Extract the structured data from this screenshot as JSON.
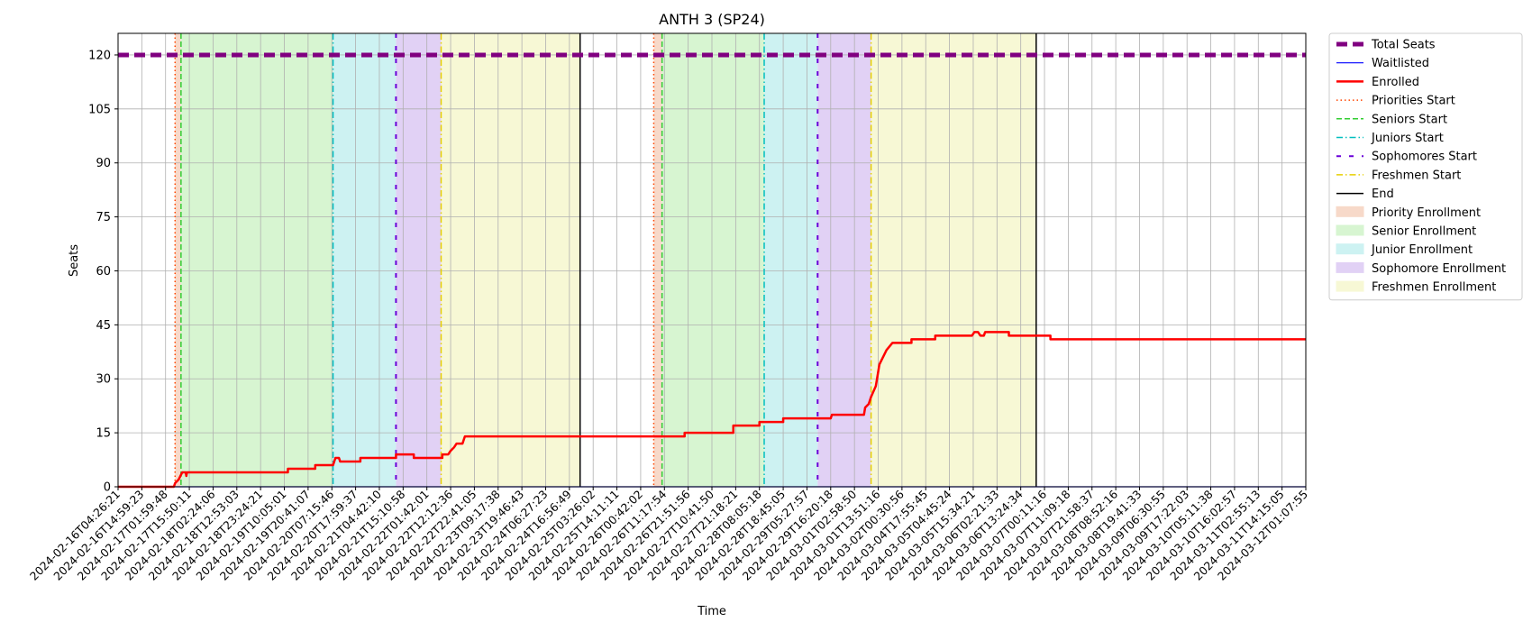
{
  "chart_data": {
    "type": "line",
    "title": "ANTH 3 (SP24)",
    "xlabel": "Time",
    "ylabel": "Seats",
    "ylim": [
      0,
      126
    ],
    "yticks": [
      0,
      15,
      30,
      45,
      60,
      75,
      90,
      105,
      120
    ],
    "xlim": [
      0,
      100
    ],
    "grid": true,
    "legend_position": "outside-right",
    "xtick_labels": [
      "2024-02-16T04:26:21",
      "2024-02-16T14:59:23",
      "2024-02-17T01:59:48",
      "2024-02-17T15:50:11",
      "2024-02-18T02:24:06",
      "2024-02-18T12:53:03",
      "2024-02-18T23:24:21",
      "2024-02-19T10:05:01",
      "2024-02-19T20:41:07",
      "2024-02-20T07:15:46",
      "2024-02-20T17:59:37",
      "2024-02-21T04:42:10",
      "2024-02-21T15:10:58",
      "2024-02-22T01:42:01",
      "2024-02-22T12:12:36",
      "2024-02-22T22:41:05",
      "2024-02-23T09:17:38",
      "2024-02-23T19:46:43",
      "2024-02-24T06:27:23",
      "2024-02-24T16:56:49",
      "2024-02-25T03:26:02",
      "2024-02-25T14:11:11",
      "2024-02-26T00:42:02",
      "2024-02-26T11:17:54",
      "2024-02-26T21:51:56",
      "2024-02-27T10:41:50",
      "2024-02-27T21:18:21",
      "2024-02-28T08:05:18",
      "2024-02-28T18:45:05",
      "2024-02-29T05:27:57",
      "2024-02-29T16:20:18",
      "2024-03-01T02:58:50",
      "2024-03-01T13:51:16",
      "2024-03-02T00:30:56",
      "2024-03-04T17:55:45",
      "2024-03-05T04:45:24",
      "2024-03-05T15:34:21",
      "2024-03-06T02:21:33",
      "2024-03-06T13:24:34",
      "2024-03-07T00:11:16",
      "2024-03-07T11:09:18",
      "2024-03-07T21:58:37",
      "2024-03-08T08:52:16",
      "2024-03-08T19:41:33",
      "2024-03-09T06:30:55",
      "2024-03-09T17:22:03",
      "2024-03-10T05:11:38",
      "2024-03-10T16:02:57",
      "2024-03-11T02:55:13",
      "2024-03-11T14:15:05",
      "2024-03-12T01:07:55"
    ],
    "legend": [
      {
        "label": "Total Seats",
        "kind": "line",
        "color": "#800080",
        "dash": "12,6",
        "width": 5
      },
      {
        "label": "Waitlisted",
        "kind": "line",
        "color": "#0000ff",
        "dash": "",
        "width": 1.2
      },
      {
        "label": "Enrolled",
        "kind": "line",
        "color": "#ff0000",
        "dash": "",
        "width": 2.5
      },
      {
        "label": "Priorities Start",
        "kind": "line",
        "color": "#ff4500",
        "dash": "1.5,3",
        "width": 1.5
      },
      {
        "label": "Seniors Start",
        "kind": "line",
        "color": "#32cd32",
        "dash": "6,3",
        "width": 1.5
      },
      {
        "label": "Juniors Start",
        "kind": "line",
        "color": "#00bfbf",
        "dash": "7,3,1.5,3",
        "width": 1.5
      },
      {
        "label": "Sophomores Start",
        "kind": "line",
        "color": "#6a00d8",
        "dash": "5,9",
        "width": 2
      },
      {
        "label": "Freshmen Start",
        "kind": "line",
        "color": "#e6cf00",
        "dash": "7,3,1.5,3",
        "width": 1.5
      },
      {
        "label": "End",
        "kind": "line",
        "color": "#000000",
        "dash": "",
        "width": 1.5
      },
      {
        "label": "Priority Enrollment",
        "kind": "patch",
        "color": "#f7d9c9",
        "dash": "",
        "width": 1
      },
      {
        "label": "Senior Enrollment",
        "kind": "patch",
        "color": "#d7f5d1",
        "dash": "",
        "width": 1
      },
      {
        "label": "Junior Enrollment",
        "kind": "patch",
        "color": "#cdf2f2",
        "dash": "",
        "width": 1
      },
      {
        "label": "Sophomore Enrollment",
        "kind": "patch",
        "color": "#e1d1f5",
        "dash": "",
        "width": 1
      },
      {
        "label": "Freshmen Enrollment",
        "kind": "patch",
        "color": "#f7f8d5",
        "dash": "",
        "width": 1
      }
    ],
    "regions": [
      {
        "name": "Priority Enrollment",
        "x0": 4.8,
        "x1": 5.3,
        "color": "#f7d9c9"
      },
      {
        "name": "Senior Enrollment",
        "x0": 5.3,
        "x1": 18.1,
        "color": "#d7f5d1"
      },
      {
        "name": "Junior Enrollment",
        "x0": 18.1,
        "x1": 23.4,
        "color": "#cdf2f2"
      },
      {
        "name": "Sophomore Enrollment",
        "x0": 23.4,
        "x1": 27.2,
        "color": "#e1d1f5"
      },
      {
        "name": "Freshmen Enrollment",
        "x0": 27.2,
        "x1": 38.9,
        "color": "#f7f8d5"
      },
      {
        "name": "Priority Enrollment",
        "x0": 45.1,
        "x1": 45.8,
        "color": "#f7d9c9"
      },
      {
        "name": "Senior Enrollment",
        "x0": 45.8,
        "x1": 54.4,
        "color": "#d7f5d1"
      },
      {
        "name": "Junior Enrollment",
        "x0": 54.4,
        "x1": 58.9,
        "color": "#cdf2f2"
      },
      {
        "name": "Sophomore Enrollment",
        "x0": 58.9,
        "x1": 63.4,
        "color": "#e1d1f5"
      },
      {
        "name": "Freshmen Enrollment",
        "x0": 63.4,
        "x1": 77.3,
        "color": "#f7f8d5"
      }
    ],
    "vlines": [
      {
        "name": "Priorities Start",
        "x": 4.8
      },
      {
        "name": "Seniors Start",
        "x": 5.3
      },
      {
        "name": "Juniors Start",
        "x": 18.1
      },
      {
        "name": "Sophomores Start",
        "x": 23.4
      },
      {
        "name": "Freshmen Start",
        "x": 27.2
      },
      {
        "name": "End",
        "x": 38.9
      },
      {
        "name": "Priorities Start",
        "x": 45.1
      },
      {
        "name": "Seniors Start",
        "x": 45.8
      },
      {
        "name": "Juniors Start",
        "x": 54.4
      },
      {
        "name": "Sophomores Start",
        "x": 58.9
      },
      {
        "name": "Freshmen Start",
        "x": 63.4
      },
      {
        "name": "End",
        "x": 77.3
      }
    ],
    "series": [
      {
        "name": "Total Seats",
        "points": [
          [
            0,
            120
          ],
          [
            100,
            120
          ]
        ]
      },
      {
        "name": "Waitlisted",
        "points": [
          [
            0,
            0
          ],
          [
            100,
            0
          ]
        ]
      },
      {
        "name": "Enrolled",
        "points": [
          [
            0,
            0
          ],
          [
            4.7,
            0
          ],
          [
            4.8,
            1
          ],
          [
            5.1,
            2
          ],
          [
            5.4,
            4
          ],
          [
            5.7,
            4
          ],
          [
            5.75,
            3
          ],
          [
            5.8,
            4
          ],
          [
            14.3,
            4
          ],
          [
            14.3,
            5
          ],
          [
            16.6,
            5
          ],
          [
            16.6,
            6
          ],
          [
            18.1,
            6
          ],
          [
            18.3,
            8
          ],
          [
            18.6,
            8
          ],
          [
            18.7,
            7
          ],
          [
            20.4,
            7
          ],
          [
            20.4,
            8
          ],
          [
            23.4,
            8
          ],
          [
            23.4,
            9
          ],
          [
            24.9,
            9
          ],
          [
            24.9,
            8
          ],
          [
            27.3,
            8
          ],
          [
            27.3,
            9
          ],
          [
            27.8,
            9
          ],
          [
            28.0,
            10
          ],
          [
            28.3,
            11
          ],
          [
            28.5,
            12
          ],
          [
            29.0,
            12
          ],
          [
            29.2,
            14
          ],
          [
            47.7,
            14
          ],
          [
            47.7,
            15
          ],
          [
            51.8,
            15
          ],
          [
            51.8,
            17
          ],
          [
            54.0,
            17
          ],
          [
            54.0,
            18
          ],
          [
            56.0,
            18
          ],
          [
            56.0,
            19
          ],
          [
            60.0,
            19
          ],
          [
            60.1,
            20
          ],
          [
            62.8,
            20
          ],
          [
            62.9,
            22
          ],
          [
            63.2,
            23
          ],
          [
            63.4,
            25
          ],
          [
            63.8,
            28
          ],
          [
            64.1,
            34
          ],
          [
            64.4,
            36
          ],
          [
            64.7,
            38
          ],
          [
            65.2,
            40
          ],
          [
            66.8,
            40
          ],
          [
            66.8,
            41
          ],
          [
            68.8,
            41
          ],
          [
            68.8,
            42
          ],
          [
            71.9,
            42
          ],
          [
            72.1,
            43
          ],
          [
            72.4,
            43
          ],
          [
            72.6,
            42
          ],
          [
            72.9,
            42
          ],
          [
            73.0,
            43
          ],
          [
            75.0,
            43
          ],
          [
            75.0,
            42
          ],
          [
            78.5,
            42
          ],
          [
            78.5,
            41
          ],
          [
            100,
            41
          ]
        ]
      }
    ]
  }
}
